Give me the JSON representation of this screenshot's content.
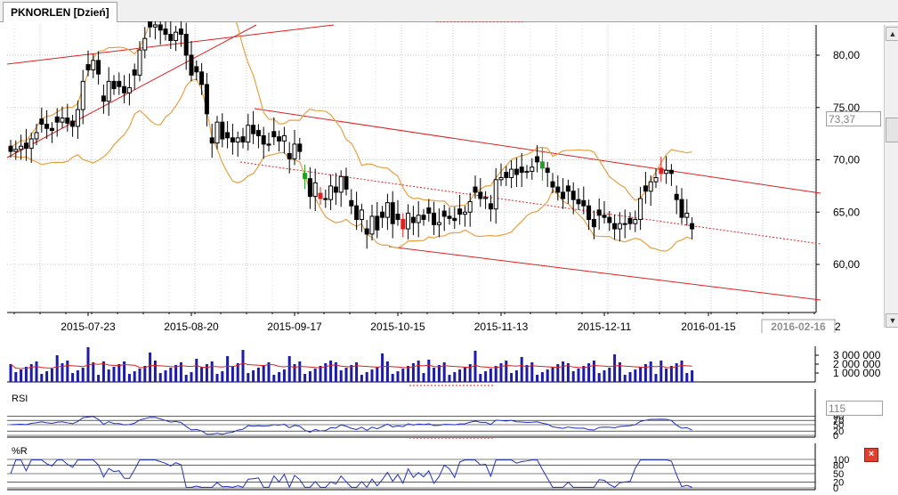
{
  "tab": {
    "title": "PKNORLEN [Dzień]"
  },
  "colors": {
    "candle_up": "#ffffff",
    "candle_down": "#000000",
    "trend": "#e02020",
    "bollinger": "#e8a040",
    "volume": "#1c1ca8",
    "volume_ma": "#e02020",
    "indicator_line": "#2030c0",
    "signal_up": "#20a020",
    "signal_down": "#e02020"
  },
  "price_axis": {
    "ticks": [
      "80,00",
      "75,00",
      "70,00",
      "65,00",
      "60,00"
    ],
    "current_value": "73,37"
  },
  "date_axis": {
    "labels": [
      "2015-07-23",
      "2015-08-20",
      "2015-09-17",
      "2015-10-15",
      "2015-11-13",
      "2015-12-11",
      "2016-01-15"
    ],
    "cursor_label": "2016-02-16",
    "trailing": "2"
  },
  "volume_axis": {
    "ticks": [
      "3 000 000",
      "2 000 000",
      "1 000 000"
    ]
  },
  "rsi": {
    "title": "RSI",
    "value_box": "115",
    "ticks": [
      "90",
      "70",
      "50",
      "20",
      "0"
    ]
  },
  "willr": {
    "title": "%R",
    "ticks": [
      "100",
      "80",
      "50",
      "20",
      "0"
    ],
    "close_icon_glyph": "×"
  },
  "scrollbar": {
    "up_glyph": "▲",
    "down_glyph": "▼"
  },
  "chart_data": {
    "type": "candlestick",
    "title": "PKNORLEN [Dzień]",
    "ylim": [
      56,
      83
    ],
    "x_tick_labels": [
      "2015-07-23",
      "2015-08-20",
      "2015-09-17",
      "2015-10-15",
      "2015-11-13",
      "2015-12-11",
      "2016-01-15",
      "2016-02-16"
    ],
    "close_series_approx": [
      70.8,
      71.0,
      71.3,
      71.1,
      72.0,
      72.6,
      73.4,
      73.0,
      72.8,
      73.6,
      74.0,
      73.5,
      73.2,
      74.8,
      77.5,
      78.6,
      79.5,
      78.2,
      75.6,
      77.5,
      76.8,
      77.0,
      76.4,
      76.9,
      78.1,
      80.5,
      81.6,
      82.7,
      82.9,
      82.4,
      82.0,
      81.4,
      82.2,
      82.0,
      80.0,
      78.1,
      78.4,
      77.2,
      74.4,
      71.6,
      73.6,
      72.0,
      72.1,
      71.7,
      72.1,
      71.7,
      73.3,
      72.5,
      72.3,
      71.5,
      71.4,
      72.2,
      71.8,
      72.3,
      70.1,
      71.5,
      70.8,
      68.2,
      66.5,
      67.8,
      66.3,
      66.2,
      67.5,
      66.9,
      68.4,
      67.2,
      65.6,
      64.3,
      65.2,
      62.9,
      64.6,
      63.3,
      64.5,
      65.9,
      63.9,
      64.3,
      63.4,
      64.9,
      64.0,
      64.7,
      64.3,
      64.9,
      63.8,
      64.0,
      64.6,
      64.4,
      64.2,
      64.8,
      65.0,
      66.0,
      66.9,
      66.3,
      66.4,
      65.3,
      68.1,
      68.3,
      68.3,
      69.1,
      68.6,
      68.8,
      68.9,
      69.3,
      69.8,
      69.2,
      68.8,
      67.4,
      66.9,
      66.3,
      67.0,
      66.2,
      65.8,
      65.6,
      64.3,
      63.6,
      64.7,
      64.5,
      64.0,
      63.4,
      63.9,
      63.9,
      63.9,
      64.3,
      66.3,
      67.0,
      67.9,
      68.3,
      68.7,
      69.0,
      68.7,
      66.2,
      64.5,
      64.9,
      63.4
    ],
    "rsi": {
      "title": "RSI",
      "ylim": [
        0,
        100
      ]
    },
    "williams_r": {
      "title": "%R",
      "ylim": [
        0,
        100
      ]
    }
  }
}
